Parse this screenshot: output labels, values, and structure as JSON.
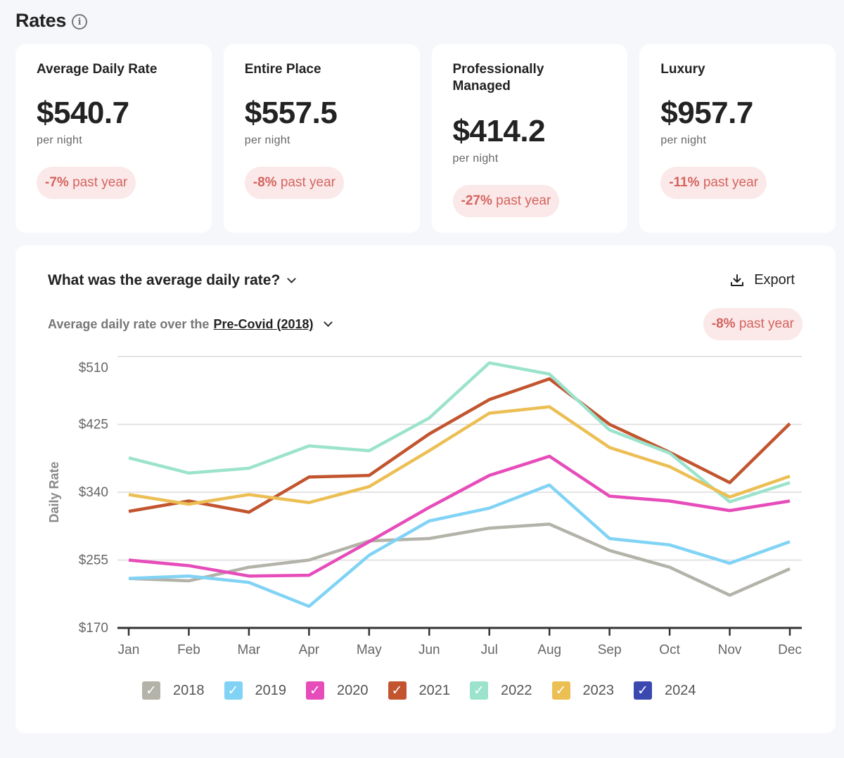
{
  "header": {
    "title": "Rates",
    "info_icon": "info-circle-icon"
  },
  "cards": [
    {
      "title": "Average Daily Rate",
      "value": "$540.7",
      "unit": "per night",
      "change": "-7%",
      "change_suffix": " past year"
    },
    {
      "title": "Entire Place",
      "value": "$557.5",
      "unit": "per night",
      "change": "-8%",
      "change_suffix": " past year"
    },
    {
      "title": "Professionally Managed",
      "value": "$414.2",
      "unit": "per night",
      "change": "-27%",
      "change_suffix": " past year"
    },
    {
      "title": "Luxury",
      "value": "$957.7",
      "unit": "per night",
      "change": "-11%",
      "change_suffix": " past year"
    }
  ],
  "panel": {
    "title": "What was the average daily rate?",
    "export_label": "Export",
    "subtitle_prefix": "Average daily rate over the ",
    "period": "Pre-Covid (2018)",
    "change": "-8%",
    "change_suffix": " past year"
  },
  "colors": {
    "negative": "#d4635e",
    "negative_bg": "#fbe9e9"
  },
  "chart_data": {
    "type": "line",
    "title": "",
    "xlabel": "",
    "ylabel": "Daily Rate",
    "x": [
      "Jan",
      "Feb",
      "Mar",
      "Apr",
      "May",
      "Jun",
      "Jul",
      "Aug",
      "Sep",
      "Oct",
      "Nov",
      "Dec"
    ],
    "ylim": [
      170,
      510
    ],
    "yticks": [
      170,
      255,
      340,
      425,
      510
    ],
    "ytick_labels": [
      "$170",
      "$255",
      "$340",
      "$425",
      "$510"
    ],
    "grid": true,
    "legend_position": "bottom",
    "series": [
      {
        "name": "2018",
        "color": "#b4b3a9",
        "checked": true,
        "values": [
          232,
          229,
          246,
          255,
          279,
          282,
          295,
          300,
          267,
          246,
          211,
          244
        ]
      },
      {
        "name": "2019",
        "color": "#81d3f5",
        "checked": true,
        "values": [
          232,
          235,
          227,
          197,
          261,
          304,
          320,
          349,
          282,
          274,
          251,
          278
        ]
      },
      {
        "name": "2020",
        "color": "#e64cba",
        "checked": true,
        "values": [
          255,
          248,
          235,
          236,
          278,
          321,
          361,
          385,
          335,
          329,
          317,
          329
        ]
      },
      {
        "name": "2021",
        "color": "#c2552f",
        "checked": true,
        "values": [
          316,
          329,
          315,
          359,
          361,
          413,
          456,
          482,
          425,
          390,
          352,
          426
        ]
      },
      {
        "name": "2022",
        "color": "#9be3cc",
        "checked": true,
        "values": [
          383,
          364,
          370,
          398,
          392,
          433,
          502,
          488,
          418,
          389,
          328,
          352
        ]
      },
      {
        "name": "2023",
        "color": "#ecbf55",
        "checked": true,
        "values": [
          337,
          325,
          337,
          327,
          347,
          392,
          439,
          447,
          396,
          372,
          334,
          360
        ]
      },
      {
        "name": "2024",
        "color": "#3b48b0",
        "checked": true,
        "values": []
      }
    ]
  }
}
